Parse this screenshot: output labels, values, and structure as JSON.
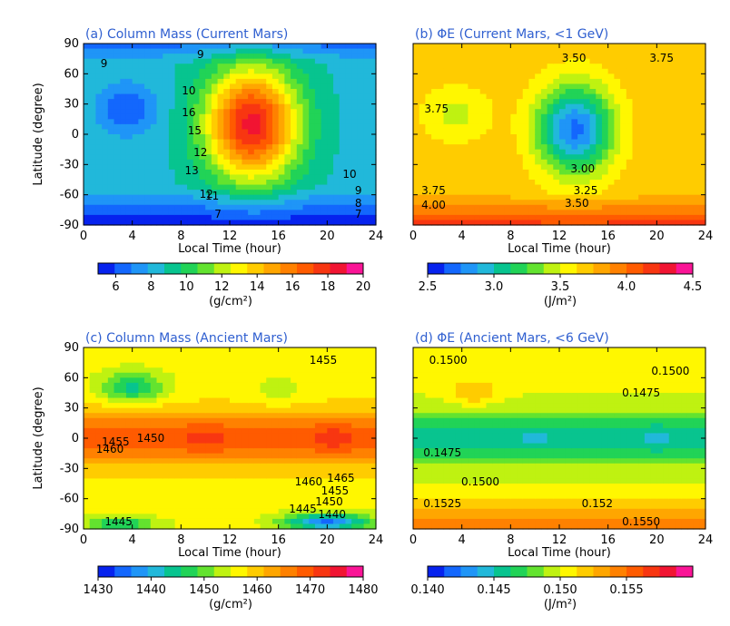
{
  "figure": {
    "panels": [
      {
        "id": "a",
        "title": "(a) Column Mass (Current Mars)"
      },
      {
        "id": "b",
        "title": "(b) ΦE (Current Mars, <1 GeV)"
      },
      {
        "id": "c",
        "title": "(c) Column Mass (Ancient Mars)"
      },
      {
        "id": "d",
        "title": "(d) ΦE (Ancient Mars, <6 GeV)"
      }
    ]
  },
  "chart_data": [
    {
      "type": "heatmap",
      "title": "(a) Column Mass (Current Mars)",
      "xlabel": "Local Time (hour)",
      "ylabel": "Latitude (degree)",
      "xlim": [
        0,
        24
      ],
      "ylim": [
        -90,
        90
      ],
      "xticks": [
        "0",
        "4",
        "8",
        "12",
        "16",
        "20",
        "24"
      ],
      "yticks": [
        "90",
        "60",
        "30",
        "0",
        "-30",
        "-60",
        "-90"
      ],
      "colorbar": {
        "min": 5,
        "max": 20,
        "ticks": [
          "6",
          "8",
          "10",
          "12",
          "14",
          "16",
          "18",
          "20"
        ],
        "unit": "(g/cm²)"
      },
      "contour_labels": [
        "9",
        "9",
        "10",
        "10",
        "9",
        "8",
        "7",
        "7",
        "12",
        "13",
        "15",
        "16",
        "11",
        "12"
      ],
      "pattern": {
        "background": 8.5,
        "features": [
          {
            "kind": "peak",
            "x": 13.8,
            "y": 10,
            "amplitude": 10,
            "sx": 3.8,
            "sy": 55
          },
          {
            "kind": "dip",
            "x": 3.5,
            "y": 25,
            "amplitude": -2.5,
            "sx": 2.4,
            "sy": 25
          },
          {
            "kind": "lat_gradient_south",
            "start": -50,
            "amplitude": -3.5
          },
          {
            "kind": "lat_gradient_north",
            "start": 70,
            "amplitude": -2.0
          }
        ]
      }
    },
    {
      "type": "heatmap",
      "title": "(b) ΦE (Current Mars, <1 GeV)",
      "xlabel": "Local Time (hour)",
      "ylabel": "",
      "xlim": [
        0,
        24
      ],
      "ylim": [
        -90,
        90
      ],
      "xticks": [
        "0",
        "4",
        "8",
        "12",
        "16",
        "20",
        "24"
      ],
      "yticks": [],
      "colorbar": {
        "min": 2.5,
        "max": 4.5,
        "ticks": [
          "2.5",
          "3.0",
          "3.5",
          "4.0",
          "4.5"
        ],
        "unit": "(J/m²)"
      },
      "contour_labels": [
        "3.50",
        "3.75",
        "3.75",
        "3.00",
        "3.25",
        "3.75",
        "3.50",
        "4.00"
      ],
      "pattern": {
        "background": 3.72,
        "features": [
          {
            "kind": "dip",
            "x": 13.3,
            "y": 5,
            "amplitude": -1.0,
            "sx": 3.2,
            "sy": 45
          },
          {
            "kind": "dip",
            "x": 3.5,
            "y": 20,
            "amplitude": -0.25,
            "sx": 3.0,
            "sy": 30
          },
          {
            "kind": "lat_gradient_south",
            "start": -60,
            "amplitude": 0.45
          }
        ]
      }
    },
    {
      "type": "heatmap",
      "title": "(c) Column Mass (Ancient Mars)",
      "xlabel": "Local Time (hour)",
      "ylabel": "Latitude (degree)",
      "xlim": [
        0,
        24
      ],
      "ylim": [
        -90,
        90
      ],
      "xticks": [
        "0",
        "4",
        "8",
        "12",
        "16",
        "20",
        "24"
      ],
      "yticks": [
        "90",
        "60",
        "30",
        "0",
        "-30",
        "-60",
        "-90"
      ],
      "colorbar": {
        "min": 1430,
        "max": 1480,
        "ticks": [
          "1430",
          "1440",
          "1450",
          "1460",
          "1470",
          "1480"
        ],
        "unit": "(g/cm²)"
      },
      "contour_labels": [
        "1455",
        "1455",
        "1450",
        "1460",
        "1465",
        "1460",
        "1455",
        "1450",
        "1445",
        "1440",
        "1445"
      ],
      "pattern": {
        "background": 1456,
        "features": [
          {
            "kind": "band",
            "y": 0,
            "amplitude": 13,
            "sy": 28
          },
          {
            "kind": "dip",
            "x": 4,
            "y": 50,
            "amplitude": -12,
            "sx": 2.5,
            "sy": 15
          },
          {
            "kind": "dip",
            "x": 20,
            "y": -83,
            "amplitude": -20,
            "sx": 3.5,
            "sy": 8
          },
          {
            "kind": "dip",
            "x": 3,
            "y": -85,
            "amplitude": -10,
            "sx": 3.0,
            "sy": 7
          },
          {
            "kind": "peak",
            "x": 10,
            "y": 0,
            "amplitude": 3,
            "sx": 2.0,
            "sy": 15
          },
          {
            "kind": "peak",
            "x": 20.5,
            "y": 0,
            "amplitude": 4,
            "sx": 1.5,
            "sy": 15
          },
          {
            "kind": "dip",
            "x": 16,
            "y": 45,
            "amplitude": -3,
            "sx": 2.0,
            "sy": 15
          }
        ]
      }
    },
    {
      "type": "heatmap",
      "title": "(d) ΦE (Ancient Mars, <6 GeV)",
      "xlabel": "Local Time (hour)",
      "ylabel": "",
      "xlim": [
        0,
        24
      ],
      "ylim": [
        -90,
        90
      ],
      "xticks": [
        "0",
        "4",
        "8",
        "12",
        "16",
        "20",
        "24"
      ],
      "yticks": [],
      "colorbar": {
        "min": 0.14,
        "max": 0.16,
        "ticks": [
          "0.140",
          "0.145",
          "0.150",
          "0.155"
        ],
        "unit": "(J/m²)"
      },
      "contour_labels": [
        "0.1500",
        "0.1500",
        "0.1475",
        "0.1475",
        "0.1500",
        "0.1525",
        "0.152",
        "0.1550"
      ],
      "pattern": {
        "background": 0.1502,
        "features": [
          {
            "kind": "band",
            "y": 0,
            "amplitude": -0.0045,
            "sy": 25
          },
          {
            "kind": "lat_gradient_south",
            "start": -50,
            "amplitude": 0.0045
          },
          {
            "kind": "peak",
            "x": 5,
            "y": 45,
            "amplitude": 0.0025,
            "sx": 2.0,
            "sy": 12
          },
          {
            "kind": "dip",
            "x": 10,
            "y": 0,
            "amplitude": -0.001,
            "sx": 2.0,
            "sy": 12
          },
          {
            "kind": "dip",
            "x": 20,
            "y": 0,
            "amplitude": -0.0012,
            "sx": 1.5,
            "sy": 14
          }
        ]
      }
    }
  ]
}
